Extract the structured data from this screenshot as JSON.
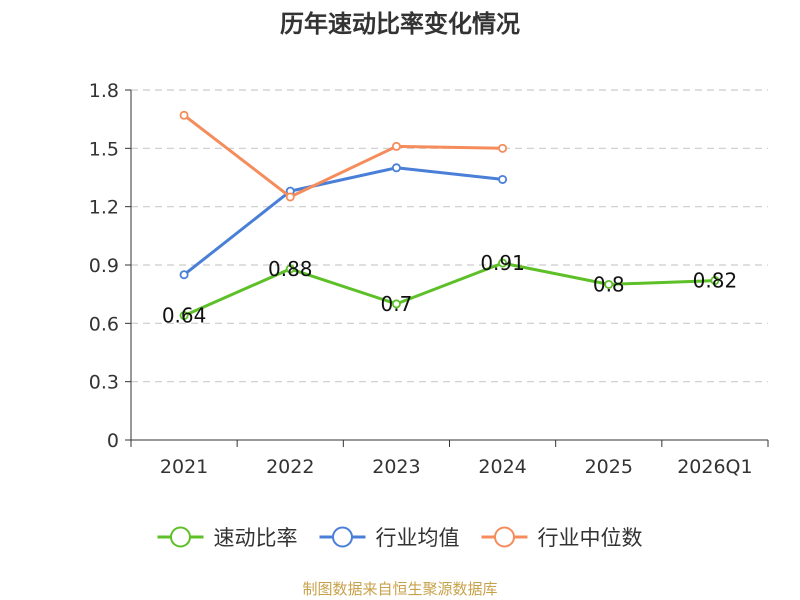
{
  "chart_data": {
    "type": "line",
    "title": "历年速动比率变化情况",
    "categories": [
      "2021",
      "2022",
      "2023",
      "2024",
      "2025",
      "2026Q1"
    ],
    "ylim": [
      0,
      1.8
    ],
    "yticks": [
      0,
      0.3,
      0.6,
      0.9,
      1.2,
      1.5,
      1.8
    ],
    "ytick_labels": [
      "0",
      "0.3",
      "0.6",
      "0.9",
      "1.2",
      "1.5",
      "1.8"
    ],
    "grid": true,
    "legend_position": "bottom-center",
    "series": [
      {
        "name": "速动比率",
        "color": "#5ec028",
        "values": [
          0.64,
          0.88,
          0.7,
          0.91,
          0.8,
          0.82
        ],
        "labels": [
          "0.64",
          "0.88",
          "0.7",
          "0.91",
          "0.8",
          "0.82"
        ],
        "show_labels": true
      },
      {
        "name": "行业均值",
        "color": "#4a7fd8",
        "values": [
          0.85,
          1.28,
          1.4,
          1.34,
          null,
          null
        ],
        "show_labels": false
      },
      {
        "name": "行业中位数",
        "color": "#f58c5c",
        "values": [
          1.67,
          1.25,
          1.51,
          1.5,
          null,
          null
        ],
        "show_labels": false
      }
    ]
  },
  "source": {
    "text": "制图数据来自恒生聚源数据库",
    "color": "#c8a24a"
  }
}
